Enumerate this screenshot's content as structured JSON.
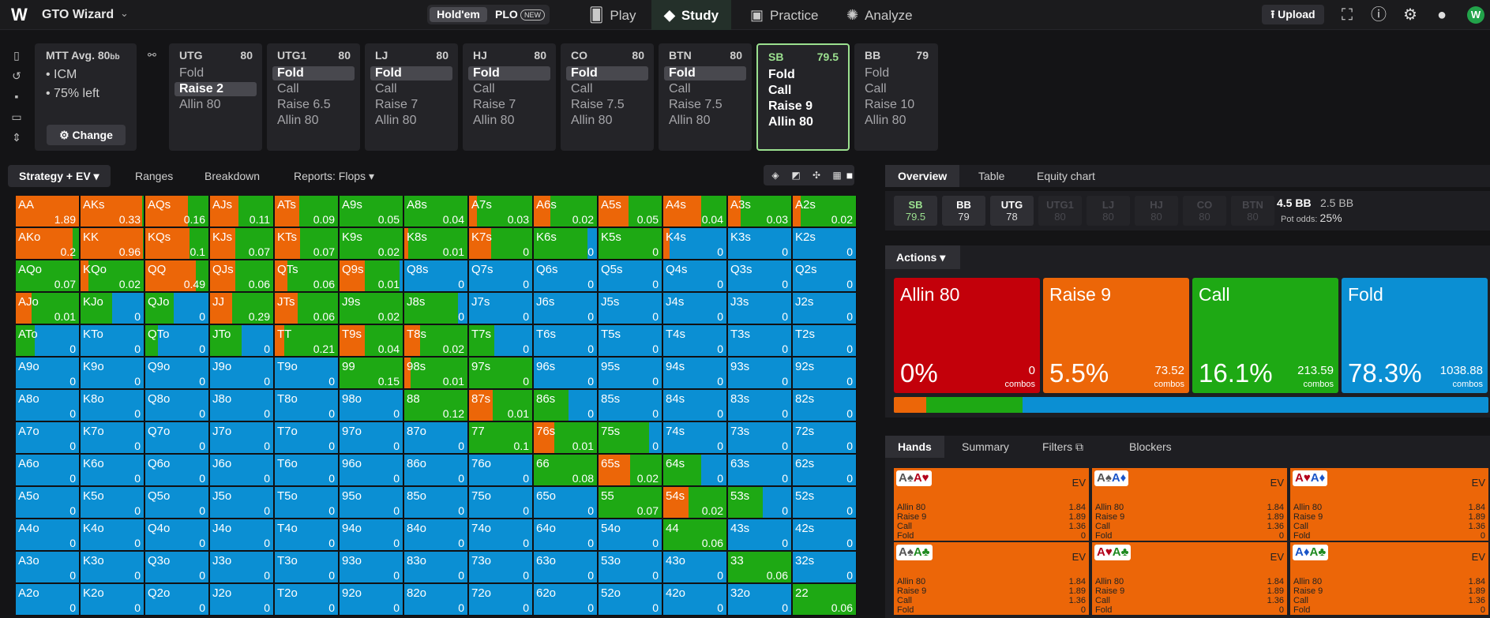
{
  "topbar": {
    "logo": "W",
    "title": "GTO Wizard",
    "game_holdem": "Hold'em",
    "game_plo": "PLO",
    "plo_badge": "NEW",
    "nav": [
      {
        "label": "Play",
        "icon": "cards-icon"
      },
      {
        "label": "Study",
        "icon": "graduation-cap-icon"
      },
      {
        "label": "Practice",
        "icon": "gamepad-icon"
      },
      {
        "label": "Analyze",
        "icon": "lightbulb-icon"
      }
    ],
    "upload": "Upload",
    "avatar": "W"
  },
  "mtt": {
    "title": "MTT",
    "avg": "Avg. 80",
    "avg_unit": "bb",
    "lines": [
      "• ICM",
      "• 75% left"
    ],
    "change": "Change"
  },
  "positions": [
    {
      "name": "UTG",
      "stack": "80",
      "options": [
        "Fold",
        "Raise 2",
        "Allin 80"
      ],
      "selected": 1
    },
    {
      "name": "UTG1",
      "stack": "80",
      "options": [
        "Fold",
        "Call",
        "Raise 6.5",
        "Allin 80"
      ],
      "selected": 0
    },
    {
      "name": "LJ",
      "stack": "80",
      "options": [
        "Fold",
        "Call",
        "Raise 7",
        "Allin 80"
      ],
      "selected": 0
    },
    {
      "name": "HJ",
      "stack": "80",
      "options": [
        "Fold",
        "Call",
        "Raise 7",
        "Allin 80"
      ],
      "selected": 0
    },
    {
      "name": "CO",
      "stack": "80",
      "options": [
        "Fold",
        "Call",
        "Raise 7.5",
        "Allin 80"
      ],
      "selected": 0
    },
    {
      "name": "BTN",
      "stack": "80",
      "options": [
        "Fold",
        "Call",
        "Raise 7.5",
        "Allin 80"
      ],
      "selected": 0
    },
    {
      "name": "SB",
      "stack": "79.5",
      "options": [
        "Fold",
        "Call",
        "Raise 9",
        "Allin 80"
      ],
      "selected": -1
    },
    {
      "name": "BB",
      "stack": "79",
      "options": [
        "Fold",
        "Call",
        "Raise 10",
        "Allin 80"
      ],
      "selected": -1
    }
  ],
  "left_tabs": {
    "strategy": "Strategy + EV",
    "ranges": "Ranges",
    "breakdown": "Breakdown",
    "reports": "Reports: Flops"
  },
  "colors": {
    "raise": "#ec6608",
    "call": "#1ea914",
    "fold": "#0b8fd3",
    "allin": "#c3000a"
  },
  "grid": {
    "ranks": [
      "A",
      "K",
      "Q",
      "J",
      "T",
      "9",
      "8",
      "7",
      "6",
      "5",
      "4",
      "3",
      "2"
    ],
    "cells": [
      [
        [
          "AA",
          "1.89",
          100,
          0
        ],
        [
          "AKs",
          "0.33",
          97,
          3
        ],
        [
          "AQs",
          "0.16",
          67,
          33
        ],
        [
          "AJs",
          "0.11",
          45,
          55
        ],
        [
          "ATs",
          "0.09",
          39,
          61
        ],
        [
          "A9s",
          "0.05",
          0,
          100
        ],
        [
          "A8s",
          "0.04",
          0,
          100
        ],
        [
          "A7s",
          "0.03",
          12,
          88
        ],
        [
          "A6s",
          "0.02",
          26,
          74
        ],
        [
          "A5s",
          "0.05",
          48,
          52
        ],
        [
          "A4s",
          "0.04",
          60,
          40
        ],
        [
          "A3s",
          "0.03",
          20,
          80
        ],
        [
          "A2s",
          "0.02",
          12,
          88
        ]
      ],
      [
        [
          "AKo",
          "0.2",
          90,
          10
        ],
        [
          "KK",
          "0.96",
          99,
          1
        ],
        [
          "KQs",
          "0.1",
          70,
          30
        ],
        [
          "KJs",
          "0.07",
          40,
          60
        ],
        [
          "KTs",
          "0.07",
          40,
          60
        ],
        [
          "K9s",
          "0.02",
          0,
          100
        ],
        [
          "K8s",
          "0.01",
          6,
          94
        ],
        [
          "K7s",
          "0",
          35,
          65
        ],
        [
          "K6s",
          "0",
          0,
          85
        ],
        [
          "K5s",
          "0",
          0,
          100
        ],
        [
          "K4s",
          "0",
          10,
          0
        ],
        [
          "K3s",
          "0",
          0,
          0
        ],
        [
          "K2s",
          "0",
          0,
          0
        ]
      ],
      [
        [
          "AQo",
          "0.07",
          0,
          100
        ],
        [
          "KQo",
          "0.02",
          12,
          88
        ],
        [
          "QQ",
          "0.49",
          80,
          20
        ],
        [
          "QJs",
          "0.06",
          40,
          60
        ],
        [
          "QTs",
          "0.06",
          20,
          80
        ],
        [
          "Q9s",
          "0.01",
          40,
          55
        ],
        [
          "Q8s",
          "0",
          0,
          0
        ],
        [
          "Q7s",
          "0",
          0,
          0
        ],
        [
          "Q6s",
          "0",
          0,
          0
        ],
        [
          "Q5s",
          "0",
          0,
          0
        ],
        [
          "Q4s",
          "0",
          0,
          0
        ],
        [
          "Q3s",
          "0",
          0,
          0
        ],
        [
          "Q2s",
          "0",
          0,
          0
        ]
      ],
      [
        [
          "AJo",
          "0.01",
          25,
          75
        ],
        [
          "KJo",
          "0",
          0,
          50
        ],
        [
          "QJo",
          "0",
          0,
          45
        ],
        [
          "JJ",
          "0.29",
          35,
          65
        ],
        [
          "JTs",
          "0.06",
          36,
          64
        ],
        [
          "J9s",
          "0.02",
          0,
          100
        ],
        [
          "J8s",
          "0",
          0,
          85
        ],
        [
          "J7s",
          "0",
          0,
          0
        ],
        [
          "J6s",
          "0",
          0,
          0
        ],
        [
          "J5s",
          "0",
          0,
          0
        ],
        [
          "J4s",
          "0",
          0,
          0
        ],
        [
          "J3s",
          "0",
          0,
          0
        ],
        [
          "J2s",
          "0",
          0,
          0
        ]
      ],
      [
        [
          "ATo",
          "0",
          0,
          30
        ],
        [
          "KTo",
          "0",
          0,
          0
        ],
        [
          "QTo",
          "0",
          0,
          20
        ],
        [
          "JTo",
          "0",
          0,
          50
        ],
        [
          "TT",
          "0.21",
          15,
          85
        ],
        [
          "T9s",
          "0.04",
          40,
          60
        ],
        [
          "T8s",
          "0.02",
          25,
          75
        ],
        [
          "T7s",
          "0",
          0,
          40
        ],
        [
          "T6s",
          "0",
          0,
          0
        ],
        [
          "T5s",
          "0",
          0,
          0
        ],
        [
          "T4s",
          "0",
          0,
          0
        ],
        [
          "T3s",
          "0",
          0,
          0
        ],
        [
          "T2s",
          "0",
          0,
          0
        ]
      ],
      [
        [
          "A9o",
          "0",
          0,
          0
        ],
        [
          "K9o",
          "0",
          0,
          0
        ],
        [
          "Q9o",
          "0",
          0,
          0
        ],
        [
          "J9o",
          "0",
          0,
          0
        ],
        [
          "T9o",
          "0",
          0,
          0
        ],
        [
          "99",
          "0.15",
          0,
          100
        ],
        [
          "98s",
          "0.01",
          10,
          90
        ],
        [
          "97s",
          "0",
          0,
          100
        ],
        [
          "96s",
          "0",
          0,
          0
        ],
        [
          "95s",
          "0",
          0,
          0
        ],
        [
          "94s",
          "0",
          0,
          0
        ],
        [
          "93s",
          "0",
          0,
          0
        ],
        [
          "92s",
          "0",
          0,
          0
        ]
      ],
      [
        [
          "A8o",
          "0",
          0,
          0
        ],
        [
          "K8o",
          "0",
          0,
          0
        ],
        [
          "Q8o",
          "0",
          0,
          0
        ],
        [
          "J8o",
          "0",
          0,
          0
        ],
        [
          "T8o",
          "0",
          0,
          0
        ],
        [
          "98o",
          "0",
          0,
          0
        ],
        [
          "88",
          "0.12",
          0,
          100
        ],
        [
          "87s",
          "0.01",
          38,
          62
        ],
        [
          "86s",
          "0",
          0,
          55
        ],
        [
          "85s",
          "0",
          0,
          0
        ],
        [
          "84s",
          "0",
          0,
          0
        ],
        [
          "83s",
          "0",
          0,
          0
        ],
        [
          "82s",
          "0",
          0,
          0
        ]
      ],
      [
        [
          "A7o",
          "0",
          0,
          0
        ],
        [
          "K7o",
          "0",
          0,
          0
        ],
        [
          "Q7o",
          "0",
          0,
          0
        ],
        [
          "J7o",
          "0",
          0,
          0
        ],
        [
          "T7o",
          "0",
          0,
          0
        ],
        [
          "97o",
          "0",
          0,
          0
        ],
        [
          "87o",
          "0",
          0,
          0
        ],
        [
          "77",
          "0.1",
          0,
          100
        ],
        [
          "76s",
          "0.01",
          33,
          67
        ],
        [
          "75s",
          "0",
          0,
          80
        ],
        [
          "74s",
          "0",
          0,
          0
        ],
        [
          "73s",
          "0",
          0,
          0
        ],
        [
          "72s",
          "0",
          0,
          0
        ]
      ],
      [
        [
          "A6o",
          "0",
          0,
          0
        ],
        [
          "K6o",
          "0",
          0,
          0
        ],
        [
          "Q6o",
          "0",
          0,
          0
        ],
        [
          "J6o",
          "0",
          0,
          0
        ],
        [
          "T6o",
          "0",
          0,
          0
        ],
        [
          "96o",
          "0",
          0,
          0
        ],
        [
          "86o",
          "0",
          0,
          0
        ],
        [
          "76o",
          "0",
          0,
          0
        ],
        [
          "66",
          "0.08",
          0,
          100
        ],
        [
          "65s",
          "0.02",
          50,
          50
        ],
        [
          "64s",
          "0",
          0,
          60
        ],
        [
          "63s",
          "0",
          0,
          0
        ],
        [
          "62s",
          "0",
          0,
          0
        ]
      ],
      [
        [
          "A5o",
          "0",
          0,
          0
        ],
        [
          "K5o",
          "0",
          0,
          0
        ],
        [
          "Q5o",
          "0",
          0,
          0
        ],
        [
          "J5o",
          "0",
          0,
          0
        ],
        [
          "T5o",
          "0",
          0,
          0
        ],
        [
          "95o",
          "0",
          0,
          0
        ],
        [
          "85o",
          "0",
          0,
          0
        ],
        [
          "75o",
          "0",
          0,
          0
        ],
        [
          "65o",
          "0",
          0,
          0
        ],
        [
          "55",
          "0.07",
          0,
          100
        ],
        [
          "54s",
          "0.02",
          40,
          60
        ],
        [
          "53s",
          "0",
          0,
          55
        ],
        [
          "52s",
          "0",
          0,
          0
        ]
      ],
      [
        [
          "A4o",
          "0",
          0,
          0
        ],
        [
          "K4o",
          "0",
          0,
          0
        ],
        [
          "Q4o",
          "0",
          0,
          0
        ],
        [
          "J4o",
          "0",
          0,
          0
        ],
        [
          "T4o",
          "0",
          0,
          0
        ],
        [
          "94o",
          "0",
          0,
          0
        ],
        [
          "84o",
          "0",
          0,
          0
        ],
        [
          "74o",
          "0",
          0,
          0
        ],
        [
          "64o",
          "0",
          0,
          0
        ],
        [
          "54o",
          "0",
          0,
          0
        ],
        [
          "44",
          "0.06",
          0,
          100
        ],
        [
          "43s",
          "0",
          0,
          0
        ],
        [
          "42s",
          "0",
          0,
          0
        ]
      ],
      [
        [
          "A3o",
          "0",
          0,
          0
        ],
        [
          "K3o",
          "0",
          0,
          0
        ],
        [
          "Q3o",
          "0",
          0,
          0
        ],
        [
          "J3o",
          "0",
          0,
          0
        ],
        [
          "T3o",
          "0",
          0,
          0
        ],
        [
          "93o",
          "0",
          0,
          0
        ],
        [
          "83o",
          "0",
          0,
          0
        ],
        [
          "73o",
          "0",
          0,
          0
        ],
        [
          "63o",
          "0",
          0,
          0
        ],
        [
          "53o",
          "0",
          0,
          0
        ],
        [
          "43o",
          "0",
          0,
          0
        ],
        [
          "33",
          "0.06",
          0,
          100
        ],
        [
          "32s",
          "0",
          0,
          0
        ]
      ],
      [
        [
          "A2o",
          "0",
          0,
          0
        ],
        [
          "K2o",
          "0",
          0,
          0
        ],
        [
          "Q2o",
          "0",
          0,
          0
        ],
        [
          "J2o",
          "0",
          0,
          0
        ],
        [
          "T2o",
          "0",
          0,
          0
        ],
        [
          "92o",
          "0",
          0,
          0
        ],
        [
          "82o",
          "0",
          0,
          0
        ],
        [
          "72o",
          "0",
          0,
          0
        ],
        [
          "62o",
          "0",
          0,
          0
        ],
        [
          "52o",
          "0",
          0,
          0
        ],
        [
          "42o",
          "0",
          0,
          0
        ],
        [
          "32o",
          "0",
          0,
          0
        ],
        [
          "22",
          "0.06",
          0,
          100
        ]
      ]
    ]
  },
  "right_tabs": {
    "overview": "Overview",
    "table": "Table",
    "equity": "Equity chart"
  },
  "seats": [
    {
      "name": "SB",
      "stack": "79.5",
      "state": "hero"
    },
    {
      "name": "BB",
      "stack": "79",
      "state": "on"
    },
    {
      "name": "UTG",
      "stack": "78",
      "state": "on"
    },
    {
      "name": "UTG1",
      "stack": "80",
      "state": "dim"
    },
    {
      "name": "LJ",
      "stack": "80",
      "state": "dim"
    },
    {
      "name": "HJ",
      "stack": "80",
      "state": "dim"
    },
    {
      "name": "CO",
      "stack": "80",
      "state": "dim"
    },
    {
      "name": "BTN",
      "stack": "80",
      "state": "dim"
    }
  ],
  "pot": {
    "total": "4.5 BB",
    "secondary": "2.5 BB",
    "odds_label": "Pot odds:",
    "odds_value": "25%"
  },
  "actions": {
    "menu": "Actions",
    "items": [
      {
        "label": "Allin 80",
        "pct": "0%",
        "combos": "0",
        "unit": "combos",
        "color": "#c3000a",
        "freq": 0
      },
      {
        "label": "Raise 9",
        "pct": "5.5%",
        "combos": "73.52",
        "unit": "combos",
        "color": "#ec6608",
        "freq": 5.5
      },
      {
        "label": "Call",
        "pct": "16.1%",
        "combos": "213.59",
        "unit": "combos",
        "color": "#1ea914",
        "freq": 16.1
      },
      {
        "label": "Fold",
        "pct": "78.3%",
        "combos": "1038.88",
        "unit": "combos",
        "color": "#0b8fd3",
        "freq": 78.3
      }
    ]
  },
  "hands_tabs": {
    "hands": "Hands",
    "summary": "Summary",
    "filters": "Filters",
    "blockers": "Blockers"
  },
  "combos": [
    {
      "c1": "A♠",
      "c2": "A♥",
      "s1": "#555",
      "s2": "#b3001b"
    },
    {
      "c1": "A♠",
      "c2": "A♦",
      "s1": "#555",
      "s2": "#1a55c8"
    },
    {
      "c1": "A♥",
      "c2": "A♦",
      "s1": "#b3001b",
      "s2": "#1a55c8"
    },
    {
      "c1": "A♠",
      "c2": "A♣",
      "s1": "#555",
      "s2": "#1e8a20"
    },
    {
      "c1": "A♥",
      "c2": "A♣",
      "s1": "#b3001b",
      "s2": "#1e8a20"
    },
    {
      "c1": "A♦",
      "c2": "A♣",
      "s1": "#1a55c8",
      "s2": "#1e8a20"
    }
  ],
  "combo_ev_label": "EV",
  "combo_rows": [
    {
      "label": "Allin 80",
      "value": "1.84"
    },
    {
      "label": "Raise 9",
      "value": "1.89"
    },
    {
      "label": "Call",
      "value": "1.36"
    },
    {
      "label": "Fold",
      "value": "0"
    }
  ]
}
